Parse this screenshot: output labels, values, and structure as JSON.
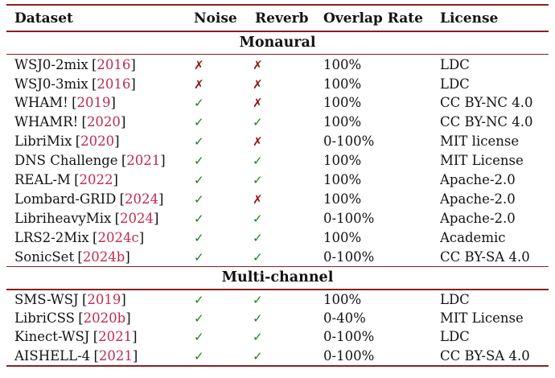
{
  "colors": {
    "rule": "#8b2020",
    "cite": "#c22a4f",
    "check": "#1c7d1c",
    "cross": "#8c1616",
    "text": "#121212",
    "background": "#ffffff"
  },
  "icons": {
    "check": "✓",
    "cross": "✗"
  },
  "punct": {
    "citation_open": "[",
    "citation_close": "]"
  },
  "table": {
    "headers": [
      "Dataset",
      "Noise",
      "Reverb",
      "Overlap Rate",
      "License"
    ],
    "sections": [
      {
        "title": "Monaural",
        "rows": [
          {
            "dataset": "WSJ0-2mix",
            "cite": "2016",
            "noise": false,
            "reverb": false,
            "overlap": "100%",
            "license": "LDC"
          },
          {
            "dataset": "WSJ0-3mix",
            "cite": "2016",
            "noise": false,
            "reverb": false,
            "overlap": "100%",
            "license": "LDC"
          },
          {
            "dataset": "WHAM!",
            "cite": "2019",
            "noise": true,
            "reverb": false,
            "overlap": "100%",
            "license": "CC BY-NC 4.0"
          },
          {
            "dataset": "WHAMR!",
            "cite": "2020",
            "noise": true,
            "reverb": true,
            "overlap": "100%",
            "license": "CC BY-NC 4.0"
          },
          {
            "dataset": "LibriMix",
            "cite": "2020",
            "noise": true,
            "reverb": false,
            "overlap": "0-100%",
            "license": "MIT license"
          },
          {
            "dataset": "DNS Challenge",
            "cite": "2021",
            "noise": true,
            "reverb": true,
            "overlap": "100%",
            "license": "MIT License"
          },
          {
            "dataset": "REAL-M",
            "cite": "2022",
            "noise": true,
            "reverb": true,
            "overlap": "100%",
            "license": "Apache-2.0"
          },
          {
            "dataset": "Lombard-GRID",
            "cite": "2024",
            "noise": true,
            "reverb": false,
            "overlap": "100%",
            "license": "Apache-2.0"
          },
          {
            "dataset": "LibriheavyMix",
            "cite": "2024",
            "noise": true,
            "reverb": true,
            "overlap": "0-100%",
            "license": "Apache-2.0"
          },
          {
            "dataset": "LRS2-2Mix",
            "cite": "2024c",
            "noise": true,
            "reverb": true,
            "overlap": "100%",
            "license": "Academic"
          },
          {
            "dataset": "SonicSet",
            "cite": "2024b",
            "noise": true,
            "reverb": true,
            "overlap": "0-100%",
            "license": "CC BY-SA 4.0"
          }
        ]
      },
      {
        "title": "Multi-channel",
        "rows": [
          {
            "dataset": "SMS-WSJ",
            "cite": "2019",
            "noise": true,
            "reverb": true,
            "overlap": "100%",
            "license": "LDC"
          },
          {
            "dataset": "LibriCSS",
            "cite": "2020b",
            "noise": true,
            "reverb": true,
            "overlap": "0-40%",
            "license": "MIT License"
          },
          {
            "dataset": "Kinect-WSJ",
            "cite": "2021",
            "noise": true,
            "reverb": true,
            "overlap": "0-100%",
            "license": "LDC"
          },
          {
            "dataset": "AISHELL-4",
            "cite": "2021",
            "noise": true,
            "reverb": true,
            "overlap": "0-100%",
            "license": "CC BY-SA 4.0"
          }
        ]
      }
    ]
  }
}
